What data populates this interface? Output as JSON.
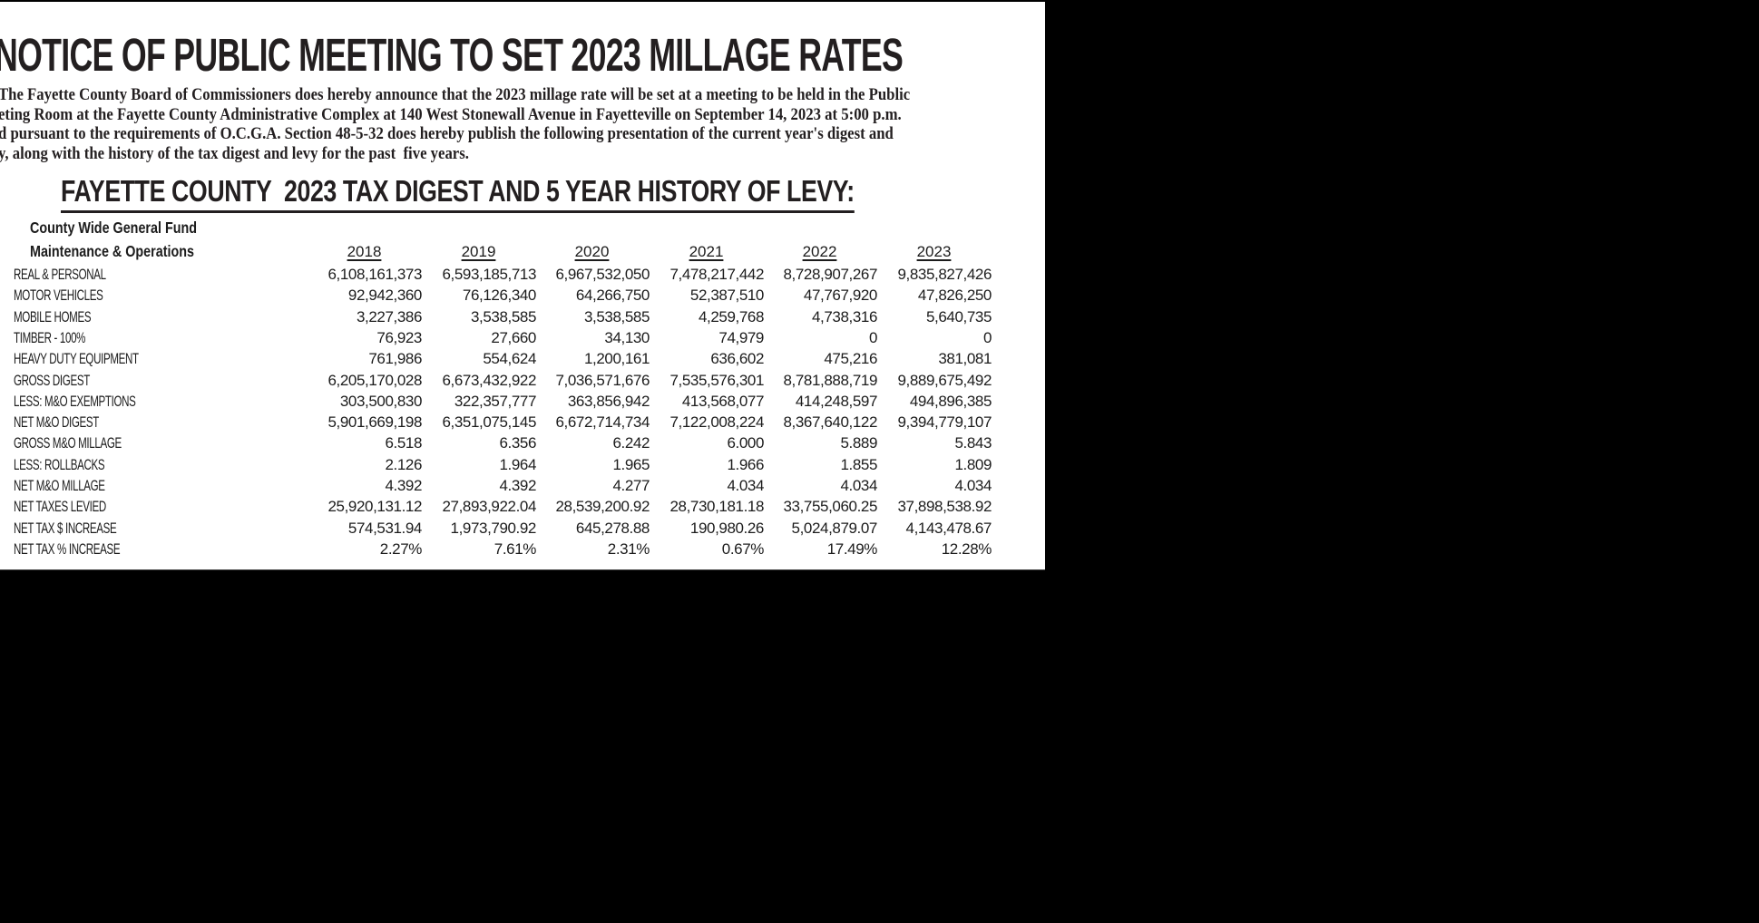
{
  "page": {
    "background_color": "#000000",
    "paper_color": "#ffffff",
    "ink_color": "#231f20"
  },
  "notice": {
    "title": "NOTICE OF PUBLIC MEETING TO SET 2023 MILLAGE RATES",
    "paragraph_lines": [
      "The Fayette County Board of Commissioners does hereby announce that the 2023 millage rate will be set at a meeting to be held in the Public",
      "eting Room at the Fayette County Administrative Complex at 140 West Stonewall Avenue in Fayetteville on September 14, 2023 at 5:00 p.m.",
      "d pursuant to the requirements of O.C.G.A. Section 48-5-32 does hereby publish the following presentation of the current year's digest and",
      "y, along with the history of the tax digest and levy for the past  five years."
    ],
    "heading": "FAYETTE COUNTY  2023 TAX DIGEST AND 5 YEAR HISTORY OF LEVY:",
    "fund_line1": "County Wide General Fund",
    "fund_line2": "Maintenance & Operations",
    "years": [
      "2018",
      "2019",
      "2020",
      "2021",
      "2022",
      "2023"
    ],
    "rows": [
      {
        "label": "REAL & PERSONAL",
        "values": [
          "6,108,161,373",
          "6,593,185,713",
          "6,967,532,050",
          "7,478,217,442",
          "8,728,907,267",
          "9,835,827,426"
        ]
      },
      {
        "label": "MOTOR VEHICLES",
        "values": [
          "92,942,360",
          "76,126,340",
          "64,266,750",
          "52,387,510",
          "47,767,920",
          "47,826,250"
        ]
      },
      {
        "label": "MOBILE HOMES",
        "values": [
          "3,227,386",
          "3,538,585",
          "3,538,585",
          "4,259,768",
          "4,738,316",
          "5,640,735"
        ]
      },
      {
        "label": "TIMBER - 100%",
        "values": [
          "76,923",
          "27,660",
          "34,130",
          "74,979",
          "0",
          "0"
        ]
      },
      {
        "label": "HEAVY DUTY EQUIPMENT",
        "values": [
          "761,986",
          "554,624",
          "1,200,161",
          "636,602",
          "475,216",
          "381,081"
        ]
      },
      {
        "label": "GROSS DIGEST",
        "values": [
          "6,205,170,028",
          "6,673,432,922",
          "7,036,571,676",
          "7,535,576,301",
          "8,781,888,719",
          "9,889,675,492"
        ]
      },
      {
        "label": "LESS: M&O EXEMPTIONS",
        "values": [
          "303,500,830",
          "322,357,777",
          "363,856,942",
          "413,568,077",
          "414,248,597",
          "494,896,385"
        ]
      },
      {
        "label": "NET M&O DIGEST",
        "values": [
          "5,901,669,198",
          "6,351,075,145",
          "6,672,714,734",
          "7,122,008,224",
          "8,367,640,122",
          "9,394,779,107"
        ]
      },
      {
        "label": "GROSS M&O MILLAGE",
        "values": [
          "6.518",
          "6.356",
          "6.242",
          "6.000",
          "5.889",
          "5.843"
        ]
      },
      {
        "label": "LESS: ROLLBACKS",
        "values": [
          "2.126",
          "1.964",
          "1.965",
          "1.966",
          "1.855",
          "1.809"
        ]
      },
      {
        "label": "NET M&O MILLAGE",
        "values": [
          "4.392",
          "4.392",
          "4.277",
          "4.034",
          "4.034",
          "4.034"
        ]
      },
      {
        "label": "NET TAXES LEVIED",
        "values": [
          "25,920,131.12",
          "27,893,922.04",
          "28,539,200.92",
          "28,730,181.18",
          "33,755,060.25",
          "37,898,538.92"
        ]
      },
      {
        "label": "NET TAX $ INCREASE",
        "values": [
          "574,531.94",
          "1,973,790.92",
          "645,278.88",
          "190,980.26",
          "5,024,879.07",
          "4,143,478.67"
        ]
      },
      {
        "label": "NET TAX % INCREASE",
        "values": [
          "2.27%",
          "7.61%",
          "2.31%",
          "0.67%",
          "17.49%",
          "12.28%"
        ]
      }
    ]
  }
}
